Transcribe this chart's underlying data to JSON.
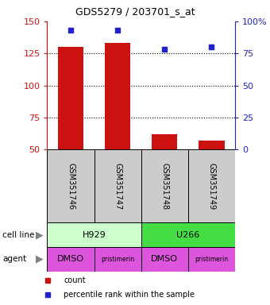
{
  "title": "GDS5279 / 203701_s_at",
  "samples": [
    "GSM351746",
    "GSM351747",
    "GSM351748",
    "GSM351749"
  ],
  "counts": [
    130,
    133,
    62,
    57
  ],
  "percentiles": [
    93,
    93,
    78,
    80
  ],
  "ylim_left": [
    50,
    150
  ],
  "ylim_right": [
    0,
    100
  ],
  "yticks_left": [
    50,
    75,
    100,
    125,
    150
  ],
  "yticks_right": [
    0,
    25,
    50,
    75,
    100
  ],
  "ytick_labels_right": [
    "0",
    "25",
    "50",
    "75",
    "100%"
  ],
  "bar_color": "#cc1111",
  "dot_color": "#2222cc",
  "cell_lines": [
    [
      "H929",
      2
    ],
    [
      "U266",
      2
    ]
  ],
  "cell_line_colors": [
    "#ccffcc",
    "#44dd44"
  ],
  "agents": [
    "DMSO",
    "pristimerin",
    "DMSO",
    "pristimerin"
  ],
  "agent_color": "#dd55dd",
  "sample_bg_color": "#cccccc",
  "grid_color": "#888888",
  "left_axis_color": "#cc1111",
  "right_axis_color": "#2222cc",
  "bar_width": 0.55
}
